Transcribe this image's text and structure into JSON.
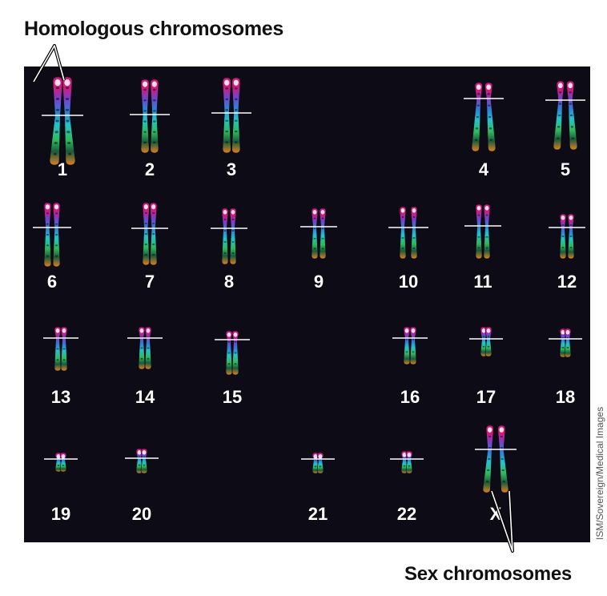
{
  "top_label": "Homologous chromosomes",
  "bottom_label": "Sex chromosomes",
  "credit": "ISM/Sovereign/Medical Images",
  "chromosomes": [
    {
      "label": "1"
    },
    {
      "label": "2"
    },
    {
      "label": "3"
    },
    {
      "label": "4"
    },
    {
      "label": "5"
    },
    {
      "label": "6"
    },
    {
      "label": "7"
    },
    {
      "label": "8"
    },
    {
      "label": "9"
    },
    {
      "label": "10"
    },
    {
      "label": "11"
    },
    {
      "label": "12"
    },
    {
      "label": "13"
    },
    {
      "label": "14"
    },
    {
      "label": "15"
    },
    {
      "label": "16"
    },
    {
      "label": "17"
    },
    {
      "label": "18"
    },
    {
      "label": "19"
    },
    {
      "label": "20"
    },
    {
      "label": "21"
    },
    {
      "label": "22"
    },
    {
      "label": "X"
    }
  ],
  "colors": {
    "panel": "#0c0b16",
    "bands": [
      "#ffffff",
      "#d21a7a",
      "#7a3fc8",
      "#2f7fd8",
      "#24c4c8",
      "#2fb85a",
      "#1a5a3a",
      "#e8d020",
      "#e08020"
    ]
  }
}
